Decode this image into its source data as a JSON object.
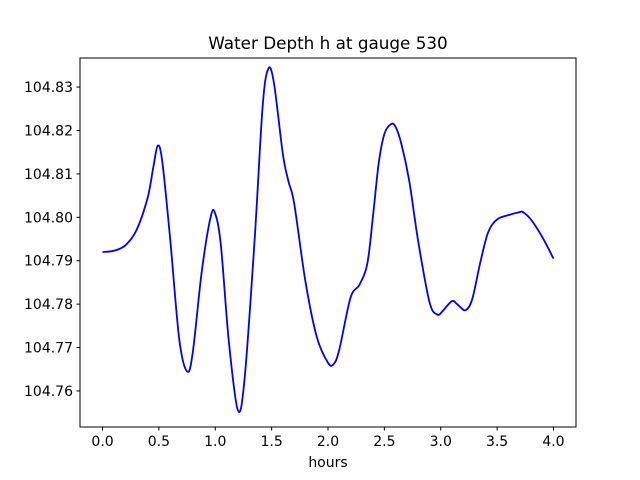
{
  "chart_data": {
    "type": "line",
    "title": "Water Depth h at gauge 530",
    "xlabel": "hours",
    "ylabel": "",
    "xlim": [
      -0.2,
      4.2
    ],
    "ylim": [
      104.7517,
      104.8367
    ],
    "grid": false,
    "legend": "none",
    "x_ticks": [
      0.0,
      0.5,
      1.0,
      1.5,
      2.0,
      2.5,
      3.0,
      3.5,
      4.0
    ],
    "x_tick_labels": [
      "0.0",
      "0.5",
      "1.0",
      "1.5",
      "2.0",
      "2.5",
      "3.0",
      "3.5",
      "4.0"
    ],
    "y_ticks": [
      104.76,
      104.77,
      104.78,
      104.79,
      104.8,
      104.81,
      104.82,
      104.83
    ],
    "y_tick_labels": [
      "104.76",
      "104.77",
      "104.78",
      "104.79",
      "104.80",
      "104.81",
      "104.82",
      "104.83"
    ],
    "series": [
      {
        "color": "#0000ff",
        "x": [
          0.0,
          0.1,
          0.2,
          0.3,
          0.4,
          0.45,
          0.49,
          0.53,
          0.6,
          0.68,
          0.75,
          0.8,
          0.88,
          0.96,
          1.0,
          1.05,
          1.12,
          1.2,
          1.26,
          1.35,
          1.42,
          1.47,
          1.52,
          1.6,
          1.65,
          1.7,
          1.8,
          1.9,
          2.0,
          2.05,
          2.1,
          2.2,
          2.28,
          2.35,
          2.4,
          2.45,
          2.5,
          2.56,
          2.6,
          2.65,
          2.72,
          2.8,
          2.9,
          2.97,
          3.02,
          3.1,
          3.15,
          3.22,
          3.28,
          3.35,
          3.42,
          3.5,
          3.6,
          3.7,
          3.73,
          3.8,
          3.9,
          4.0
        ],
        "y": [
          104.792,
          104.7923,
          104.7935,
          104.797,
          104.8045,
          104.8115,
          104.8165,
          104.8128,
          104.795,
          104.772,
          104.7645,
          104.7688,
          104.7875,
          104.8002,
          104.8008,
          104.7935,
          104.7715,
          104.7556,
          104.7628,
          104.7952,
          104.8255,
          104.8342,
          104.831,
          104.8145,
          104.8082,
          104.8032,
          104.7852,
          104.7725,
          104.7665,
          104.7662,
          104.7695,
          104.7815,
          104.7845,
          104.7895,
          104.8005,
          104.8125,
          104.8192,
          104.8215,
          104.8208,
          104.817,
          104.8085,
          104.7945,
          104.7805,
          104.7776,
          104.7785,
          104.7807,
          104.7799,
          104.7786,
          104.7812,
          104.7895,
          104.7965,
          104.7995,
          104.8005,
          104.8012,
          104.8012,
          104.7995,
          104.7955,
          104.7905
        ]
      }
    ]
  }
}
